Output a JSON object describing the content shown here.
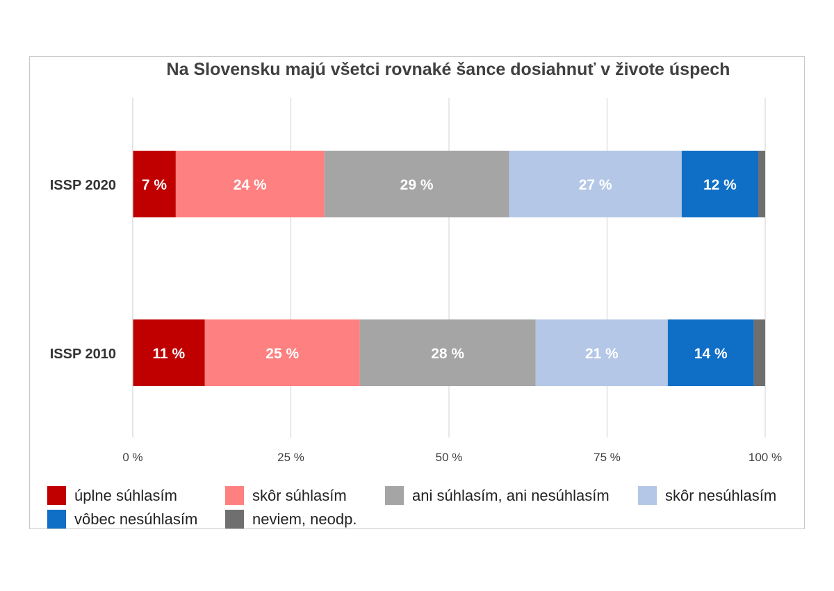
{
  "chart_data": {
    "type": "bar",
    "orientation": "horizontal",
    "stacked": true,
    "normalized": true,
    "title": "Na Slovensku majú všetci rovnaké šance dosiahnuť v živote úspech",
    "xlabel": "",
    "ylabel": "",
    "xlim": [
      0,
      100
    ],
    "x_ticks": [
      0,
      25,
      50,
      75,
      100
    ],
    "x_tick_labels": [
      "0 %",
      "25 %",
      "50 %",
      "75 %",
      "100 %"
    ],
    "grid": "vertical",
    "legend_position": "bottom",
    "categories": [
      "ISSP 2020",
      "ISSP 2010"
    ],
    "series": [
      {
        "name": "úplne súhlasím",
        "color": "#c00000",
        "values": [
          6.8,
          11.4
        ],
        "labels": [
          "7 %",
          "11 %"
        ],
        "label_color": "#ffffff"
      },
      {
        "name": "skôr súhlasím",
        "color": "#ff8080",
        "values": [
          23.5,
          24.5
        ],
        "labels": [
          "24 %",
          "25 %"
        ],
        "label_color": "#ffffff"
      },
      {
        "name": "ani súhlasím, ani nesúhlasím",
        "color": "#a5a5a5",
        "values": [
          29.2,
          27.8
        ],
        "labels": [
          "29 %",
          "28 %"
        ],
        "label_color": "#ffffff"
      },
      {
        "name": "skôr nesúhlasím",
        "color": "#b4c7e7",
        "values": [
          27.3,
          20.9
        ],
        "labels": [
          "27 %",
          "21 %"
        ],
        "label_color": "#ffffff"
      },
      {
        "name": "vôbec nesúhlasím",
        "color": "#0f6fc6",
        "values": [
          12.1,
          13.6
        ],
        "labels": [
          "12 %",
          "14 %"
        ],
        "label_color": "#ffffff"
      },
      {
        "name": "neviem, neodp.",
        "color": "#6f6f6f",
        "values": [
          1.1,
          1.8
        ],
        "labels": [
          "",
          ""
        ],
        "label_color": "#ffffff"
      }
    ]
  }
}
